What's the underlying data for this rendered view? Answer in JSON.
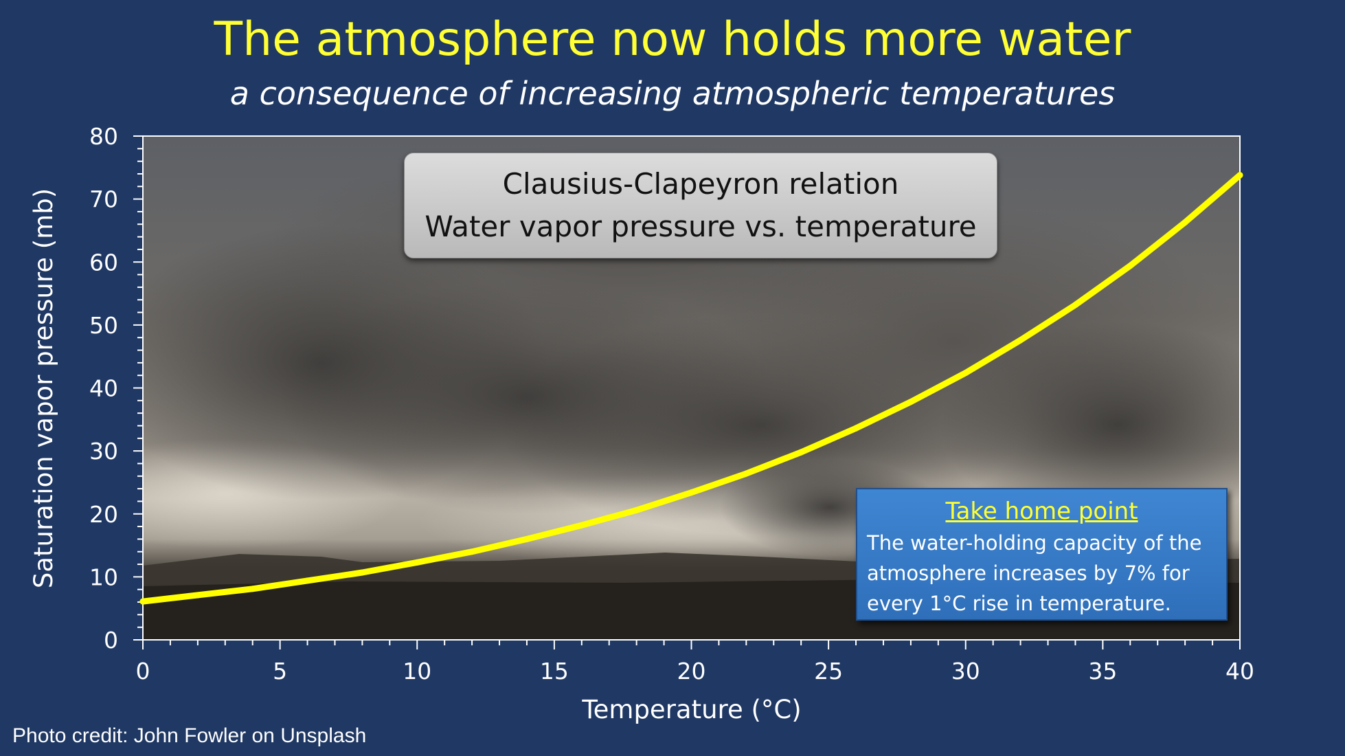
{
  "header": {
    "title": "The atmosphere now holds more water",
    "subtitle": "a consequence of increasing atmospheric temperatures"
  },
  "callout": {
    "line1": "Clausius-Clapeyron relation",
    "line2": "Water vapor pressure vs. temperature"
  },
  "take_home": {
    "heading": "Take home point",
    "body": "The water-holding capacity of the atmosphere increases by 7% for every 1°C rise in temperature."
  },
  "photo_credit": "Photo credit: John Fowler on Unsplash",
  "colors": {
    "background": "#1f3864",
    "title": "#ffff33",
    "curve": "#ffff00",
    "take_home_box": "#3a7dc9"
  },
  "chart_data": {
    "type": "line",
    "title": "",
    "xlabel": "Temperature (°C)",
    "ylabel": "Saturation vapor pressure (mb)",
    "xlim": [
      0,
      40
    ],
    "ylim": [
      0,
      80
    ],
    "xticks": [
      0,
      5,
      10,
      15,
      20,
      25,
      30,
      35,
      40
    ],
    "yticks": [
      0,
      10,
      20,
      30,
      40,
      50,
      60,
      70,
      80
    ],
    "x_minor_step": 1,
    "y_minor_step": 2,
    "grid": false,
    "background_image": "storm cloud photograph",
    "series": [
      {
        "color": "#ffff00",
        "x": [
          0,
          2,
          4,
          6,
          8,
          10,
          12,
          14,
          16,
          18,
          20,
          22,
          24,
          26,
          28,
          30,
          32,
          34,
          36,
          38,
          40
        ],
        "y": [
          6.1,
          7.1,
          8.1,
          9.4,
          10.7,
          12.3,
          14.0,
          16.0,
          18.2,
          20.6,
          23.4,
          26.4,
          29.8,
          33.6,
          37.8,
          42.4,
          47.6,
          53.2,
          59.4,
          66.3,
          73.8
        ]
      }
    ]
  }
}
